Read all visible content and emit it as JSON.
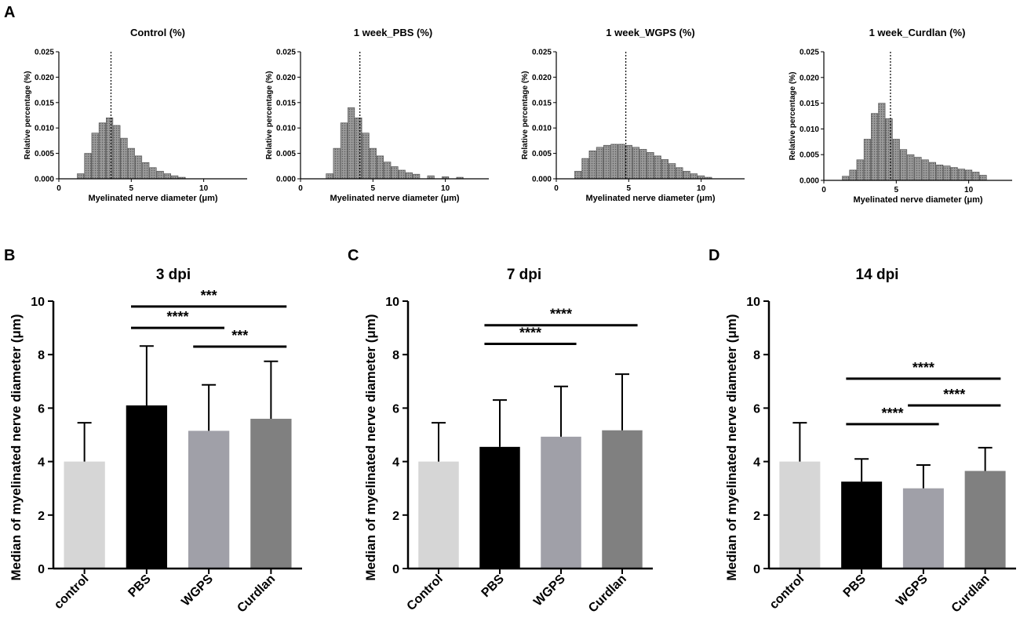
{
  "figure": {
    "panel_letters": [
      "A",
      "B",
      "C",
      "D"
    ],
    "colors": {
      "ink": "#000000",
      "hist_fill": "#8c8c8c",
      "hist_line": "#4a4a4a"
    }
  },
  "chart_data": [
    {
      "panel": "A",
      "type": "bar",
      "subtype": "histogram",
      "title": "Control (%)",
      "xlabel": "Myelinated nerve diameter (μm)",
      "ylabel": "Relative percentage (%)",
      "xlim": [
        0,
        13
      ],
      "ylim": [
        0,
        0.025
      ],
      "xticks": [
        0,
        5,
        10
      ],
      "yticks": [
        "0.000",
        "0.005",
        "0.010",
        "0.015",
        "0.020",
        "0.025"
      ],
      "median_line": 3.6,
      "x": [
        1.5,
        2.0,
        2.5,
        3.0,
        3.5,
        4.0,
        4.5,
        5.0,
        5.5,
        6.0,
        6.5,
        7.0,
        7.5,
        8.0,
        8.5
      ],
      "values": [
        0.001,
        0.005,
        0.009,
        0.011,
        0.012,
        0.0105,
        0.008,
        0.006,
        0.0045,
        0.0032,
        0.0022,
        0.0015,
        0.001,
        0.0006,
        0.0003
      ]
    },
    {
      "panel": "A",
      "type": "bar",
      "subtype": "histogram",
      "title": "1 week_PBS (%)",
      "xlabel": "Myelinated nerve diameter (μm)",
      "ylabel": "Relative percentage (%)",
      "xlim": [
        0,
        13
      ],
      "ylim": [
        0,
        0.025
      ],
      "xticks": [
        0,
        5,
        10
      ],
      "yticks": [
        "0.000",
        "0.005",
        "0.010",
        "0.015",
        "0.020",
        "0.025"
      ],
      "median_line": 4.1,
      "x": [
        2.0,
        2.5,
        3.0,
        3.5,
        4.0,
        4.5,
        5.0,
        5.5,
        6.0,
        6.5,
        7.0,
        7.5,
        8.0,
        9.0,
        10.0,
        11.0
      ],
      "values": [
        0.001,
        0.006,
        0.011,
        0.014,
        0.012,
        0.009,
        0.006,
        0.0045,
        0.0033,
        0.0024,
        0.0017,
        0.0012,
        0.0009,
        0.0006,
        0.0004,
        0.0003
      ]
    },
    {
      "panel": "A",
      "type": "bar",
      "subtype": "histogram",
      "title": "1 week_WGPS (%)",
      "xlabel": "Myelinated nerve diameter (μm)",
      "ylabel": "Relative percentage (%)",
      "xlim": [
        0,
        13
      ],
      "ylim": [
        0,
        0.025
      ],
      "xticks": [
        0,
        5,
        10
      ],
      "yticks": [
        "0.000",
        "0.005",
        "0.010",
        "0.015",
        "0.020",
        "0.025"
      ],
      "median_line": 4.8,
      "x": [
        1.5,
        2.0,
        2.5,
        3.0,
        3.5,
        4.0,
        4.5,
        5.0,
        5.5,
        6.0,
        6.5,
        7.0,
        7.5,
        8.0,
        8.5,
        9.0,
        9.5,
        10.0,
        10.5
      ],
      "values": [
        0.0015,
        0.004,
        0.0055,
        0.0062,
        0.0066,
        0.0068,
        0.0068,
        0.0066,
        0.0062,
        0.0058,
        0.0052,
        0.0045,
        0.0038,
        0.003,
        0.0022,
        0.0015,
        0.001,
        0.0006,
        0.0003
      ]
    },
    {
      "panel": "A",
      "type": "bar",
      "subtype": "histogram",
      "title": "1 week_Curdlan (%)",
      "xlabel": "Myelinated nerve diameter (μm)",
      "ylabel": "Relative percentage (%)",
      "xlim": [
        0,
        13
      ],
      "ylim": [
        0,
        0.025
      ],
      "xticks": [
        0,
        5,
        10
      ],
      "yticks": [
        "0.000",
        "0.005",
        "0.010",
        "0.015",
        "0.020",
        "0.025"
      ],
      "median_line": 4.6,
      "x": [
        1.5,
        2.0,
        2.5,
        3.0,
        3.5,
        4.0,
        4.5,
        5.0,
        5.5,
        6.0,
        6.5,
        7.0,
        7.5,
        8.0,
        8.5,
        9.0,
        9.5,
        10.0,
        10.5,
        11.0
      ],
      "values": [
        0.0008,
        0.002,
        0.004,
        0.008,
        0.013,
        0.015,
        0.012,
        0.008,
        0.006,
        0.005,
        0.0045,
        0.004,
        0.0035,
        0.003,
        0.0028,
        0.0025,
        0.0022,
        0.002,
        0.0016,
        0.001
      ]
    },
    {
      "panel": "B",
      "type": "bar",
      "title": "3 dpi",
      "xlabel": "",
      "ylabel": "Median of myelinated nerve diameter (μm)",
      "ylim": [
        0,
        10
      ],
      "yticks": [
        "0",
        "2",
        "4",
        "6",
        "8",
        "10"
      ],
      "categories": [
        "control",
        "PBS",
        "WGPS",
        "Curdlan"
      ],
      "values": [
        4.0,
        6.1,
        5.15,
        5.6
      ],
      "errors": [
        1.45,
        2.22,
        1.72,
        2.15
      ],
      "bar_colors": [
        "#d6d6d6",
        "#000000",
        "#a0a0a8",
        "#808080"
      ],
      "significance": [
        {
          "from": 1,
          "to": 3,
          "label": "***",
          "y": 9.8
        },
        {
          "from": 1,
          "to": 2,
          "label": "****",
          "y": 9.0
        },
        {
          "from": 2,
          "to": 3,
          "label": "***",
          "y": 8.3
        }
      ]
    },
    {
      "panel": "C",
      "type": "bar",
      "title": "7 dpi",
      "xlabel": "",
      "ylabel": "Median of myelinated nerve diameter (μm)",
      "ylim": [
        0,
        10
      ],
      "yticks": [
        "0",
        "2",
        "4",
        "6",
        "8",
        "10"
      ],
      "categories": [
        "Control",
        "PBS",
        "WGPS",
        "Curdlan"
      ],
      "values": [
        4.0,
        4.55,
        4.93,
        5.17
      ],
      "errors": [
        1.45,
        1.75,
        1.88,
        2.1
      ],
      "bar_colors": [
        "#d6d6d6",
        "#000000",
        "#a0a0a8",
        "#808080"
      ],
      "significance": [
        {
          "from": 1,
          "to": 3,
          "label": "****",
          "y": 9.1
        },
        {
          "from": 1,
          "to": 2,
          "label": "****",
          "y": 8.4
        }
      ]
    },
    {
      "panel": "D",
      "type": "bar",
      "title": "14 dpi",
      "xlabel": "",
      "ylabel": "Median of myelinated nerve diameter (μm)",
      "ylim": [
        0,
        10
      ],
      "yticks": [
        "0",
        "2",
        "4",
        "6",
        "8",
        "10"
      ],
      "categories": [
        "control",
        "PBS",
        "WGPS",
        "Curdlan"
      ],
      "values": [
        4.0,
        3.25,
        3.0,
        3.65
      ],
      "errors": [
        1.45,
        0.85,
        0.87,
        0.87
      ],
      "bar_colors": [
        "#d6d6d6",
        "#000000",
        "#a0a0a8",
        "#808080"
      ],
      "significance": [
        {
          "from": 1,
          "to": 3,
          "label": "****",
          "y": 7.1
        },
        {
          "from": 2,
          "to": 3,
          "label": "****",
          "y": 6.1
        },
        {
          "from": 1,
          "to": 2,
          "label": "****",
          "y": 5.4
        }
      ]
    }
  ]
}
